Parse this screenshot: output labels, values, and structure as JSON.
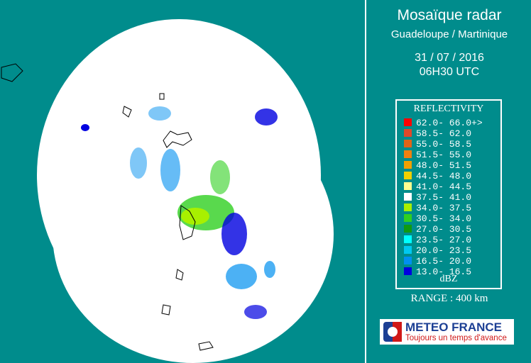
{
  "header": {
    "title": "Mosaïque radar",
    "subtitle": "Guadeloupe / Martinique",
    "date": "31 / 07 / 2016",
    "time": "06H30 UTC"
  },
  "legend": {
    "title": "REFLECTIVITY",
    "unit": "dBZ",
    "items": [
      {
        "label": "62.0- 66.0+>",
        "color": "#ff0000"
      },
      {
        "label": "58.5- 62.0",
        "color": "#e0482a"
      },
      {
        "label": "55.0- 58.5",
        "color": "#e06418"
      },
      {
        "label": "51.5- 55.0",
        "color": "#f08010"
      },
      {
        "label": "48.0- 51.5",
        "color": "#f0a000"
      },
      {
        "label": "44.5- 48.0",
        "color": "#f0d000"
      },
      {
        "label": "41.0- 44.5",
        "color": "#ffff90"
      },
      {
        "label": "37.5- 41.0",
        "color": "#ffffff"
      },
      {
        "label": "34.0- 37.5",
        "color": "#a8f000"
      },
      {
        "label": "30.5- 34.0",
        "color": "#30d020"
      },
      {
        "label": "27.0- 30.5",
        "color": "#109a10"
      },
      {
        "label": "23.5- 27.0",
        "color": "#00ffff"
      },
      {
        "label": "20.0- 23.5",
        "color": "#00c8f0"
      },
      {
        "label": "16.5- 20.0",
        "color": "#0090f0"
      },
      {
        "label": "13.0- 16.5",
        "color": "#0000e0"
      }
    ]
  },
  "range": "RANGE : 400 km",
  "logo": {
    "name": "METEO FRANCE",
    "slogan": "Toujours un temps d'avance"
  }
}
